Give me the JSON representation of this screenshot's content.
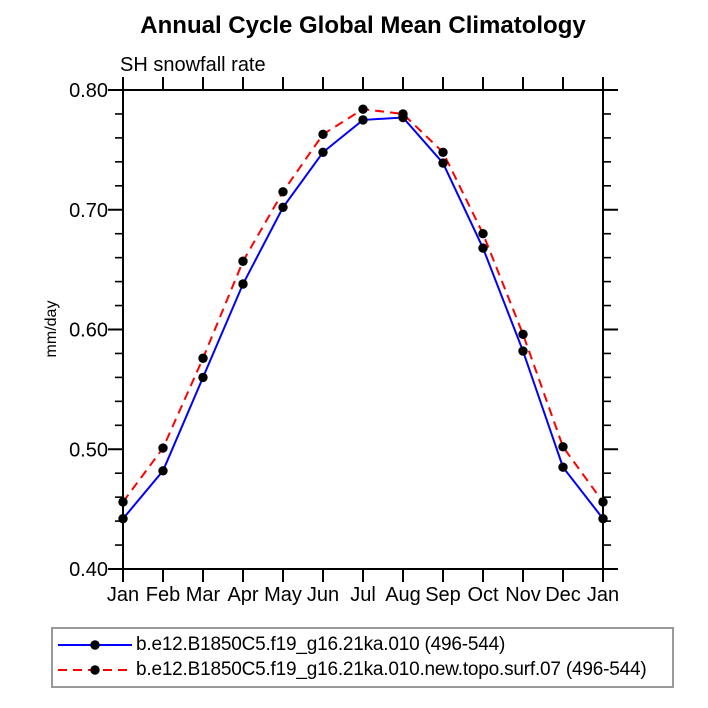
{
  "page": {
    "background": "#ffffff"
  },
  "colors": {
    "axis": "#000000",
    "text": "#000000",
    "legend_border": "#999999",
    "series1": "#0000ff",
    "series2": "#ff0000",
    "marker": "#000000"
  },
  "chart_data": {
    "type": "line",
    "title": "Annual Cycle Global Mean Climatology",
    "subtitle": "SH snowfall rate",
    "ylabel": "mm/day",
    "xlabel": "",
    "categories": [
      "Jan",
      "Feb",
      "Mar",
      "Apr",
      "May",
      "Jun",
      "Jul",
      "Aug",
      "Sep",
      "Oct",
      "Nov",
      "Dec",
      "Jan"
    ],
    "ylim": [
      0.4,
      0.8
    ],
    "ytick_major": [
      0.8,
      0.7,
      0.6,
      0.5,
      0.4
    ],
    "ytick_labels": [
      "0.80",
      "0.70",
      "0.60",
      "0.50",
      "0.40"
    ],
    "ytick_minor_step": 0.02,
    "grid": false,
    "legend_position": "bottom-left-box",
    "series": [
      {
        "name": "b.e12.B1850C5.f19_g16.21ka.010 (496-544)",
        "color": "#0000ff",
        "line_style": "solid",
        "marker": "circle",
        "marker_color": "#000000",
        "values": [
          0.442,
          0.482,
          0.56,
          0.638,
          0.702,
          0.748,
          0.775,
          0.777,
          0.739,
          0.668,
          0.582,
          0.485,
          0.442
        ]
      },
      {
        "name": "b.e12.B1850C5.f19_g16.21ka.010.new.topo.surf.07 (496-544)",
        "color": "#ff0000",
        "line_style": "dashed",
        "marker": "circle",
        "marker_color": "#000000",
        "values": [
          0.456,
          0.501,
          0.576,
          0.657,
          0.715,
          0.763,
          0.784,
          0.78,
          0.748,
          0.68,
          0.596,
          0.502,
          0.456
        ]
      }
    ]
  }
}
